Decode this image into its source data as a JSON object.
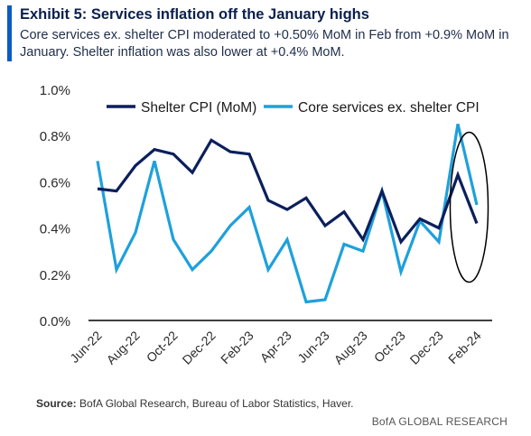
{
  "title": "Exhibit 5: Services inflation off the January highs",
  "subtitle": "Core services ex. shelter CPI moderated to +0.50% MoM in Feb from +0.9% MoM in January. Shelter inflation was also lower at +0.4% MoM.",
  "source_label": "Source:",
  "source_text": " BofA Global Research, Bureau of Labor Statistics, Haver.",
  "brand": "BofA GLOBAL RESEARCH",
  "chart_data": {
    "type": "line",
    "x": [
      "Jun-22",
      "Jul-22",
      "Aug-22",
      "Sep-22",
      "Oct-22",
      "Nov-22",
      "Dec-22",
      "Jan-23",
      "Feb-23",
      "Mar-23",
      "Apr-23",
      "May-23",
      "Jun-23",
      "Jul-23",
      "Aug-23",
      "Sep-23",
      "Oct-23",
      "Nov-23",
      "Dec-23",
      "Jan-24",
      "Feb-24"
    ],
    "tick_labels": [
      "Jun-22",
      "Aug-22",
      "Oct-22",
      "Dec-22",
      "Feb-23",
      "Apr-23",
      "Jun-23",
      "Aug-23",
      "Oct-23",
      "Dec-23",
      "Feb-24"
    ],
    "yticks": [
      "0.0%",
      "0.2%",
      "0.4%",
      "0.6%",
      "0.8%",
      "1.0%"
    ],
    "ylim": [
      0,
      1.0
    ],
    "grid": false,
    "legend_position": "top",
    "series": [
      {
        "name": "Shelter CPI (MoM)",
        "color": "#0b1f5c",
        "values": [
          0.57,
          0.56,
          0.67,
          0.74,
          0.72,
          0.64,
          0.78,
          0.73,
          0.72,
          0.52,
          0.48,
          0.53,
          0.41,
          0.47,
          0.35,
          0.56,
          0.34,
          0.44,
          0.4,
          0.63,
          0.42
        ]
      },
      {
        "name": "Core services ex. shelter CPI",
        "color": "#1ea0dc",
        "values": [
          0.69,
          0.22,
          0.38,
          0.69,
          0.35,
          0.22,
          0.3,
          0.41,
          0.49,
          0.22,
          0.35,
          0.08,
          0.09,
          0.33,
          0.3,
          0.56,
          0.21,
          0.43,
          0.34,
          0.85,
          0.5
        ]
      }
    ],
    "annotation": "ellipse around latest two months"
  }
}
